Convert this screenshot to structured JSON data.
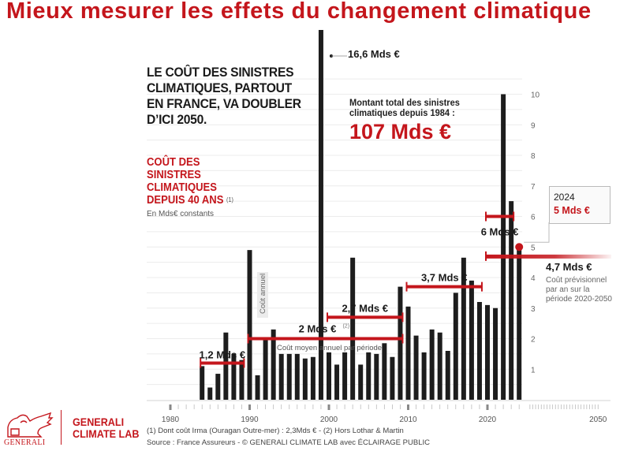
{
  "title": "Mieux mesurer les effets du changement climatique",
  "headline": "LE COÛT DES SINISTRES CLIMATIQUES, PARTOUT EN FRANCE, VA DOUBLER D’ICI 2050.",
  "subhead": "COÛT DES SINISTRES CLIMATIQUES DEPUIS 40 ANS",
  "subhead_note": "(1)",
  "unit_label": "En Mds€ constants",
  "total": {
    "label": "Montant total des sinistres climatiques depuis 1984 :",
    "value": "107 Mds €"
  },
  "legend": {
    "year": "2024",
    "value": "5 Mds €"
  },
  "projection": {
    "value": "4,7 Mds €",
    "description": "Coût prévisionnel par an sur la période 2020-2050"
  },
  "brand": {
    "name_line1": "GENERALI",
    "name_line2": "CLIMATE LAB",
    "logo_word": "GENERALI",
    "color": "#c4161c"
  },
  "footnotes": {
    "line1": "(1) Dont coût Irma (Ouragan Outre-mer) : 2,3Mds € - (2) Hors Lothar & Martin",
    "line2": "Source : France Assureurs - © GENERALI CLIMATE LAB avec ÉCLAIRAGE PUBLIC"
  },
  "chart_data": {
    "type": "bar",
    "title": "Coût des sinistres climatiques depuis 40 ans",
    "ylabel": "En Mds€ constants",
    "xlabel": "",
    "ylim": [
      0,
      10
    ],
    "yticks": [
      1,
      2,
      3,
      4,
      5,
      6,
      7,
      8,
      9,
      10
    ],
    "xticks": [
      1980,
      1990,
      2000,
      2010,
      2020,
      2050
    ],
    "x_range": [
      1979,
      2050
    ],
    "grid": true,
    "bar_label": "Coût annuel",
    "mean_label": "Coût moyen annuel par période",
    "categories": [
      1984,
      1985,
      1986,
      1987,
      1988,
      1989,
      1990,
      1991,
      1992,
      1993,
      1994,
      1995,
      1996,
      1997,
      1998,
      1999,
      2000,
      2001,
      2002,
      2003,
      2004,
      2005,
      2006,
      2007,
      2008,
      2009,
      2010,
      2011,
      2012,
      2013,
      2014,
      2015,
      2016,
      2017,
      2018,
      2019,
      2020,
      2021,
      2022,
      2023,
      2024
    ],
    "values": [
      1.1,
      0.4,
      0.85,
      2.2,
      1.5,
      1.3,
      4.9,
      0.8,
      2.0,
      2.3,
      1.5,
      1.5,
      1.5,
      1.35,
      1.4,
      16.6,
      1.55,
      1.15,
      1.55,
      4.65,
      1.15,
      1.55,
      1.5,
      1.85,
      1.4,
      3.7,
      3.05,
      2.1,
      1.55,
      2.3,
      2.2,
      1.6,
      3.5,
      4.65,
      3.9,
      3.2,
      3.1,
      3.0,
      10.0,
      6.5,
      5.1
    ],
    "annotations": [
      {
        "label": "16,6 Mds €",
        "year": 1999,
        "value": 16.6
      }
    ],
    "period_means": [
      {
        "label": "1,2 Mds €",
        "from": 1984,
        "to": 1989,
        "value": 1.2,
        "note": ""
      },
      {
        "label": "2 Mds €",
        "from": 1990,
        "to": 2009,
        "value": 2.0,
        "note": "(2)"
      },
      {
        "label": "2,7 Mds €",
        "from": 2000,
        "to": 2009,
        "value": 2.7,
        "note": ""
      },
      {
        "label": "3,7 Mds €",
        "from": 2010,
        "to": 2019,
        "value": 3.7,
        "note": ""
      },
      {
        "label": "6 Mds €",
        "from": 2020,
        "to": 2023,
        "value": 6.0,
        "note": ""
      }
    ],
    "highlight": {
      "year": 2024,
      "value": 5.0
    },
    "projection": {
      "from": 2020,
      "to": 2050,
      "value": 4.7
    }
  }
}
